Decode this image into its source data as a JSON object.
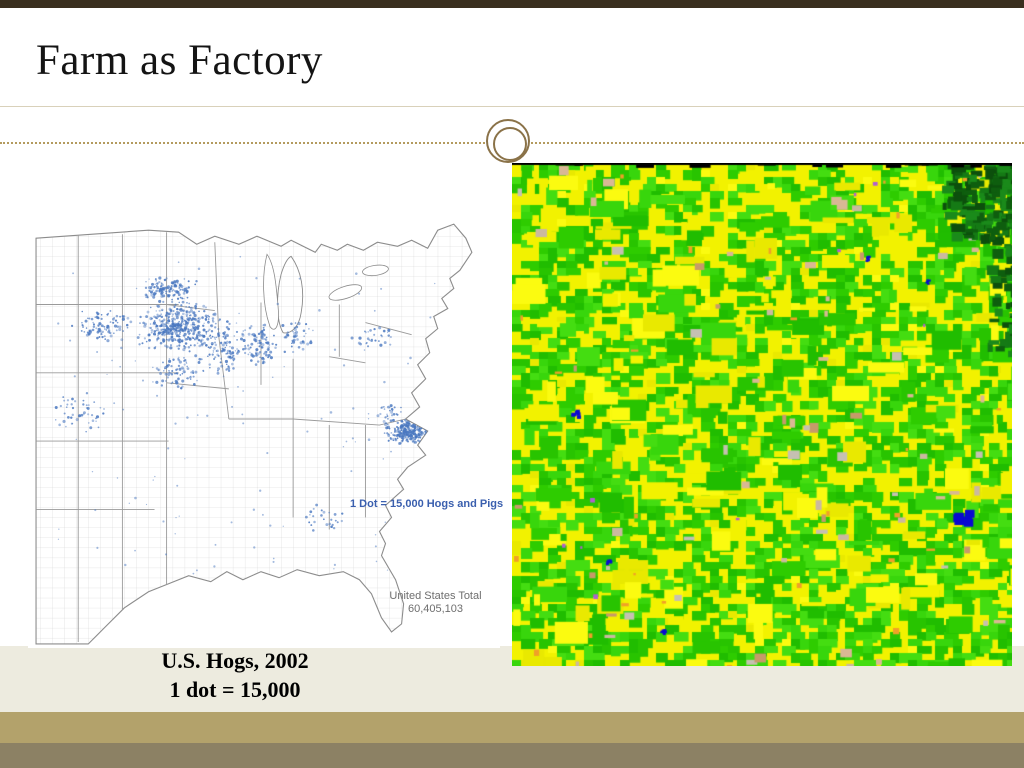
{
  "slide": {
    "title": "Farm as Factory"
  },
  "hog_map": {
    "legend": "1 Dot = 15,000 Hogs and Pigs",
    "total_label": "United States Total",
    "total_value": "60,405,103",
    "caption_line1": "U.S. Hogs, 2002",
    "caption_line2": "1 dot = 15,000"
  },
  "theme": {
    "top_bar": "#3a2f1f",
    "dashed_line": "#b49b5e",
    "circle_ring": "#8a7248",
    "beige_strip": "#edebdf",
    "footer_tan": "#b3a26b",
    "footer_dark": "#8c8164",
    "dot_blue": "#4a78c0",
    "legend_blue": "#3a5fae",
    "field_yellow": "#f2f200",
    "field_green": "#2ecc00"
  }
}
